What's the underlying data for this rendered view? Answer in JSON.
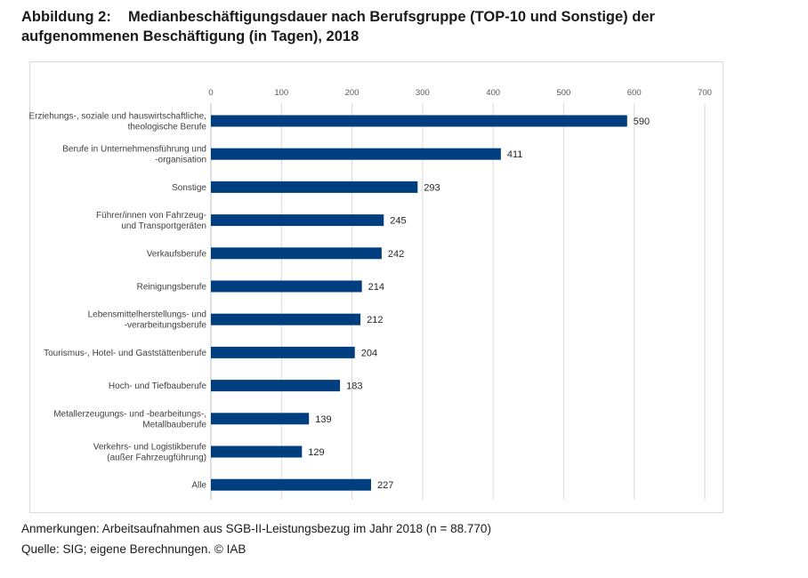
{
  "title": {
    "label": "Abbildung 2:",
    "text_line1": "Medianbeschäftigungsdauer nach Berufsgruppe (TOP-10 und Sonstige) der",
    "text_line2": "aufgenommenen Beschäftigung (in Tagen), 2018"
  },
  "chart_data": {
    "type": "bar",
    "orientation": "horizontal",
    "title": "Medianbeschäftigungsdauer nach Berufsgruppe (TOP-10 und Sonstige) der aufgenommenen Beschäftigung (in Tagen), 2018",
    "xlabel": "",
    "ylabel": "",
    "xlim": [
      0,
      700
    ],
    "xticks": [
      0,
      100,
      200,
      300,
      400,
      500,
      600,
      700
    ],
    "tick_position": "top",
    "grid": true,
    "bar_color": "#003f7f",
    "categories": [
      [
        "Erziehungs-, soziale und hauswirtschaftliche,",
        "theologische Berufe"
      ],
      [
        "Berufe in Unternehmensführung und",
        "-organisation"
      ],
      [
        "Sonstige"
      ],
      [
        "Führer/innen von Fahrzeug-",
        "und Transportgeräten"
      ],
      [
        "Verkaufsberufe"
      ],
      [
        "Reinigungsberufe"
      ],
      [
        "Lebensmittelherstellungs- und",
        "-verarbeitungsberufe"
      ],
      [
        "Tourismus-, Hotel- und Gaststättenberufe"
      ],
      [
        "Hoch- und Tiefbauberufe"
      ],
      [
        "Metallerzeugungs- und -bearbeitungs-,",
        "Metallbauberufe"
      ],
      [
        "Verkehrs- und Logistikberufe",
        "(außer Fahrzeugführung)"
      ],
      [
        "Alle"
      ]
    ],
    "values": [
      590,
      411,
      293,
      245,
      242,
      214,
      212,
      204,
      183,
      139,
      129,
      227
    ]
  },
  "notes": {
    "anmerkungen": "Anmerkungen: Arbeitsaufnahmen aus SGB-II-Leistungsbezug im Jahr 2018 (n = 88.770)",
    "quelle": "Quelle: SIG; eigene Berechnungen. © IAB"
  }
}
